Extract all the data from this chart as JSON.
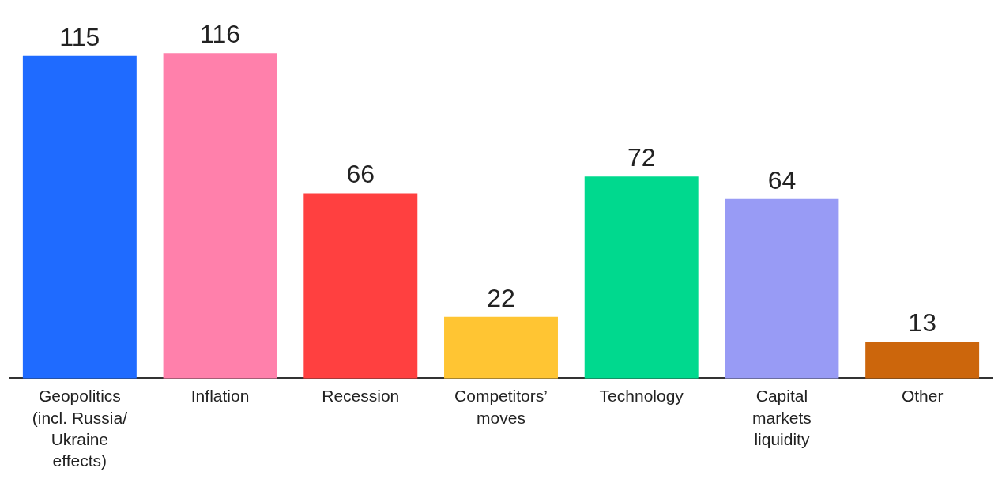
{
  "chart_data": {
    "type": "bar",
    "categories": [
      "Geopolitics (incl. Russia/ Ukraine effects)",
      "Inflation",
      "Recession",
      "Competitors’ moves",
      "Technology",
      "Capital markets liquidity",
      "Other"
    ],
    "values": [
      115,
      116,
      66,
      22,
      72,
      64,
      13
    ],
    "colors": [
      "#1f6bff",
      "#ff80ab",
      "#ff4040",
      "#ffc533",
      "#00d98e",
      "#989bf5",
      "#cc660c"
    ],
    "data_labels": true,
    "grid": false,
    "legend": false
  }
}
